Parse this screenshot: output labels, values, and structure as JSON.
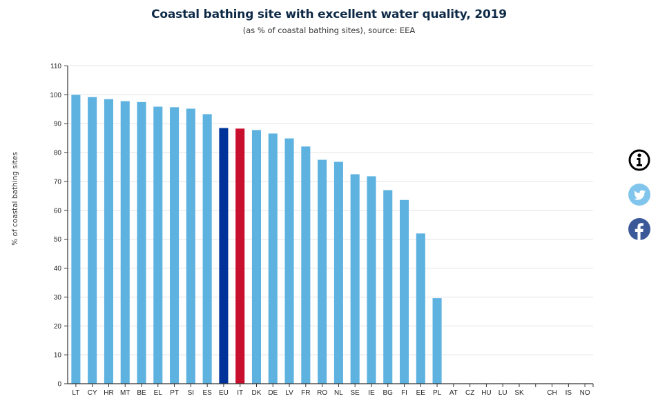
{
  "chart_data": {
    "type": "bar",
    "title": "Coastal bathing site with excellent water quality, 2019",
    "subtitle": "(as % of coastal bathing sites), source: EEA",
    "xlabel": "",
    "ylabel": "% of coastal bathing sites",
    "ylim": [
      0,
      110
    ],
    "yticks": [
      0,
      10,
      20,
      30,
      40,
      50,
      60,
      70,
      80,
      90,
      100,
      110
    ],
    "grid": true,
    "categories": [
      "LT",
      "CY",
      "HR",
      "MT",
      "BE",
      "EL",
      "PT",
      "SI",
      "ES",
      "EU",
      "IT",
      "DK",
      "DE",
      "LV",
      "FR",
      "RO",
      "NL",
      "SE",
      "IE",
      "BG",
      "FI",
      "EE",
      "PL",
      "AT",
      "CZ",
      "HU",
      "LU",
      "SK",
      "",
      "CH",
      "IS",
      "NO"
    ],
    "values": [
      100,
      99.2,
      98.5,
      97.8,
      97.5,
      95.9,
      95.7,
      95.2,
      93.3,
      88.5,
      88.3,
      87.8,
      86.6,
      84.9,
      82.1,
      77.5,
      76.8,
      72.5,
      71.8,
      67.0,
      63.6,
      52.0,
      29.6,
      null,
      null,
      null,
      null,
      null,
      null,
      null,
      null,
      null
    ],
    "colors": {
      "default": "#5eb2e0",
      "highlight_eu": "#003399",
      "highlight_it": "#c8102e"
    },
    "highlights": {
      "EU": "highlight_eu",
      "IT": "highlight_it"
    }
  },
  "side_icons": [
    {
      "name": "info-icon",
      "color": "#000000"
    },
    {
      "name": "twitter-icon",
      "color": "#82c5ec"
    },
    {
      "name": "facebook-icon",
      "color": "#3b5998"
    }
  ]
}
